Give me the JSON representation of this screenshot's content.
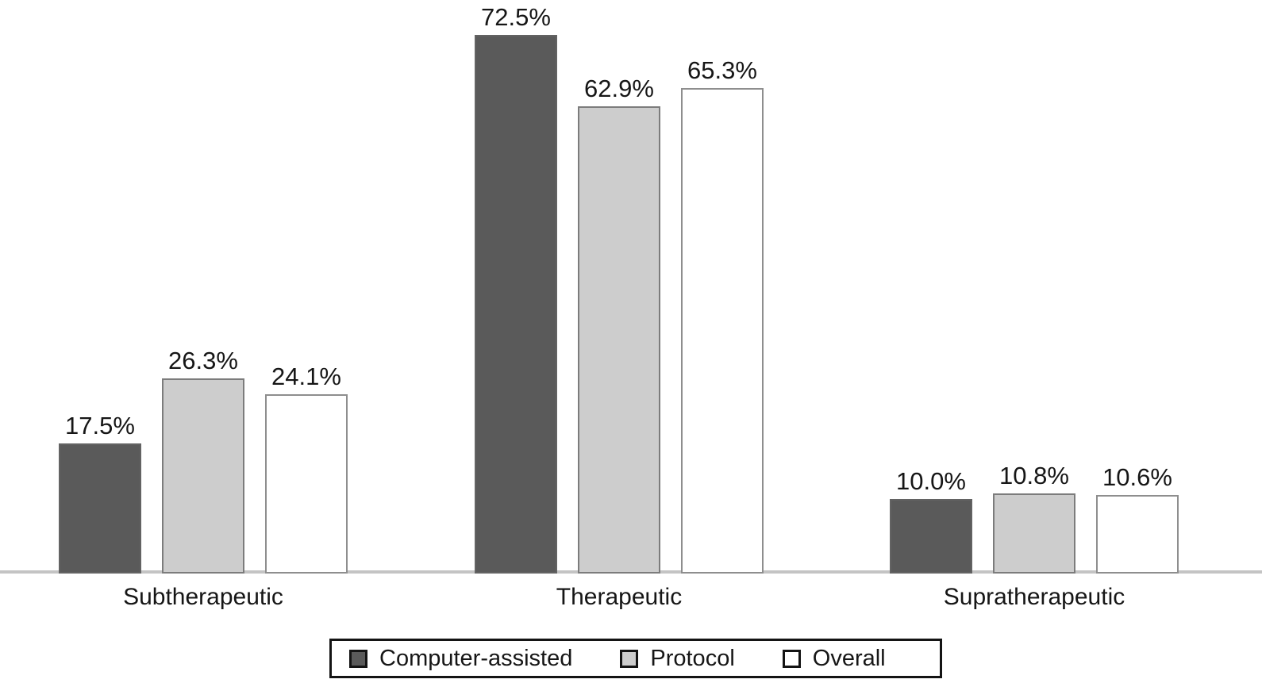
{
  "chart_data": {
    "type": "bar",
    "title": "",
    "xlabel": "",
    "ylabel": "",
    "categories": [
      "Subtherapeutic",
      "Therapeutic",
      "Supratherapeutic"
    ],
    "series": [
      {
        "name": "Computer-assisted",
        "values": [
          17.5,
          72.5,
          10.0
        ],
        "labels": [
          "17.5%",
          "72.5%",
          "10.0%"
        ],
        "color": "#5a5a5a",
        "border_color": "#636363"
      },
      {
        "name": "Protocol",
        "values": [
          26.3,
          62.9,
          10.8
        ],
        "labels": [
          "26.3%",
          "62.9%",
          "10.8%"
        ],
        "color": "#cdcdcd",
        "border_color": "#7c7c7c"
      },
      {
        "name": "Overall",
        "values": [
          24.1,
          65.3,
          10.6
        ],
        "labels": [
          "24.1%",
          "65.3%",
          "10.6%"
        ],
        "color": "#ffffff",
        "border_color": "#8e8e8e"
      }
    ],
    "ylim": [
      0,
      77.2
    ],
    "grid": false,
    "value_labels_shown": true,
    "legend_position": "bottom",
    "legend_entries": [
      "Computer-assisted",
      "Protocol",
      "Overall"
    ],
    "axis_line_color": "#c4c4c4",
    "text_color": "#161616"
  }
}
